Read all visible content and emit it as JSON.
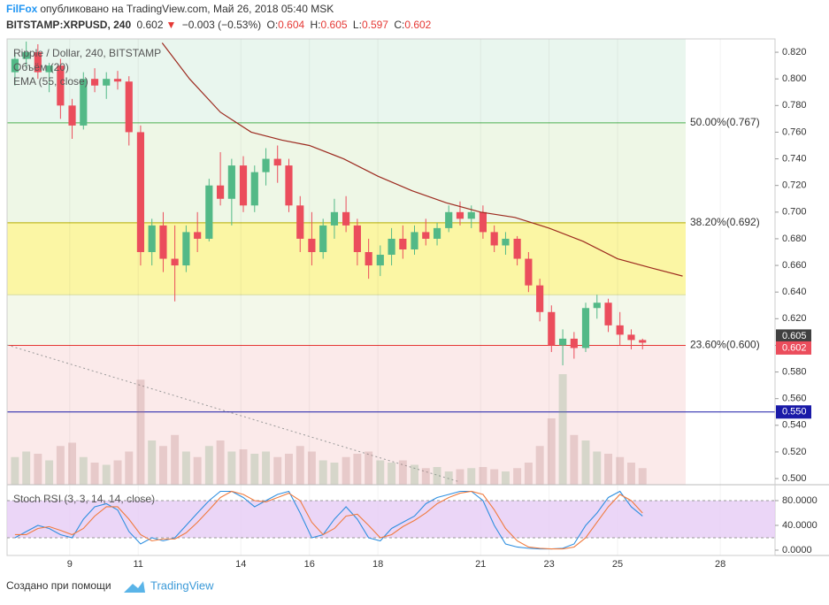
{
  "chart_data": {
    "type": "candlestick",
    "header": {
      "author": "FilFox",
      "published": "опубликовано на TradingView.com, Май 26, 2018 05:40 MSK",
      "symbol": "BITSTAMP:XRPUSD, 240",
      "last": 0.602,
      "change": "−0.003 (−0.53%)",
      "o_label": "O:",
      "o": 0.604,
      "h_label": "H:",
      "h": 0.605,
      "l_label": "L:",
      "l": 0.597,
      "c_label": "C:",
      "c": 0.602
    },
    "legend": [
      "Ripple / Dollar, 240, BITSTAMP",
      "Объём (20)"
    ],
    "up_color": "#53b987",
    "down_color": "#eb4d5c",
    "xlim": [
      7.17,
      29.6
    ],
    "xticks": [
      9,
      11,
      14,
      16,
      18,
      21,
      23,
      25,
      28
    ],
    "ylim": [
      0.4954,
      0.83
    ],
    "yticks": [
      {
        "value": 0.5,
        "label": "0.500"
      },
      {
        "value": 0.52,
        "label": "0.520"
      },
      {
        "value": 0.54,
        "label": "0.540"
      },
      {
        "value": 0.56,
        "label": "0.560"
      },
      {
        "value": 0.58,
        "label": "0.580"
      },
      {
        "value": 0.6,
        "label": "0.600"
      },
      {
        "value": 0.62,
        "label": "0.620"
      },
      {
        "value": 0.64,
        "label": "0.640"
      },
      {
        "value": 0.66,
        "label": "0.660"
      },
      {
        "value": 0.68,
        "label": "0.680"
      },
      {
        "value": 0.7,
        "label": "0.700"
      },
      {
        "value": 0.72,
        "label": "0.720"
      },
      {
        "value": 0.74,
        "label": "0.740"
      },
      {
        "value": 0.76,
        "label": "0.760"
      },
      {
        "value": 0.78,
        "label": "0.780"
      },
      {
        "value": 0.8,
        "label": "0.800"
      },
      {
        "value": 0.82,
        "label": "0.820"
      }
    ],
    "fib_top_fill": "#e9f6ee",
    "fib_levels": [
      {
        "value": 0.767,
        "label": "50.00%(0.767)",
        "color": "#4caf50",
        "fill": "#eef7e6"
      },
      {
        "value": 0.692,
        "label": "38.20%(0.692)",
        "color": "#b5ad00",
        "fill": "#fbf6a4"
      },
      {
        "value": 0.638,
        "label": null,
        "color": "#d8dca0",
        "fill": "#f3f8ea"
      },
      {
        "value": 0.6,
        "label": "23.60%(0.600)",
        "color": "#e53935",
        "fill": "#fbeaea"
      }
    ],
    "price_labels": [
      {
        "value": 0.605,
        "label": "0.605",
        "color": "#404040"
      },
      {
        "value": 0.602,
        "label": "0.602",
        "color": "#eb4d5c"
      },
      {
        "value": 0.55,
        "label": "0.550",
        "color": "#1a1aa8",
        "line": true
      }
    ],
    "x": [
      7.4,
      7.73,
      8.07,
      8.4,
      8.73,
      9.07,
      9.4,
      9.73,
      10.07,
      10.4,
      10.73,
      11.07,
      11.4,
      11.73,
      12.07,
      12.4,
      12.73,
      13.07,
      13.4,
      13.73,
      14.07,
      14.4,
      14.73,
      15.07,
      15.4,
      15.73,
      16.07,
      16.4,
      16.73,
      17.07,
      17.4,
      17.73,
      18.07,
      18.4,
      18.73,
      19.07,
      19.4,
      19.73,
      20.07,
      20.4,
      20.73,
      21.07,
      21.4,
      21.73,
      22.07,
      22.4,
      22.73,
      23.07,
      23.4,
      23.73,
      24.07,
      24.4,
      24.73,
      25.07,
      25.4,
      25.73
    ],
    "open": [
      0.805,
      0.815,
      0.82,
      0.805,
      0.81,
      0.78,
      0.765,
      0.8,
      0.795,
      0.8,
      0.798,
      0.76,
      0.67,
      0.69,
      0.665,
      0.66,
      0.685,
      0.68,
      0.72,
      0.71,
      0.735,
      0.705,
      0.73,
      0.74,
      0.735,
      0.705,
      0.68,
      0.67,
      0.69,
      0.7,
      0.69,
      0.67,
      0.66,
      0.668,
      0.68,
      0.672,
      0.685,
      0.68,
      0.688,
      0.7,
      0.695,
      0.7,
      0.685,
      0.675,
      0.68,
      0.665,
      0.645,
      0.625,
      0.6,
      0.605,
      0.598,
      0.628,
      0.632,
      0.615,
      0.608,
      0.604
    ],
    "high": [
      0.82,
      0.828,
      0.826,
      0.812,
      0.815,
      0.785,
      0.805,
      0.808,
      0.805,
      0.806,
      0.802,
      0.765,
      0.695,
      0.7,
      0.69,
      0.69,
      0.7,
      0.725,
      0.745,
      0.74,
      0.742,
      0.735,
      0.748,
      0.75,
      0.74,
      0.712,
      0.7,
      0.695,
      0.71,
      0.712,
      0.695,
      0.68,
      0.675,
      0.688,
      0.69,
      0.69,
      0.695,
      0.692,
      0.705,
      0.708,
      0.705,
      0.705,
      0.69,
      0.685,
      0.682,
      0.67,
      0.65,
      0.63,
      0.612,
      0.61,
      0.632,
      0.638,
      0.635,
      0.625,
      0.612,
      0.605
    ],
    "low": [
      0.795,
      0.808,
      0.8,
      0.79,
      0.77,
      0.755,
      0.762,
      0.79,
      0.785,
      0.792,
      0.75,
      0.66,
      0.66,
      0.655,
      0.633,
      0.655,
      0.67,
      0.678,
      0.705,
      0.69,
      0.7,
      0.7,
      0.72,
      0.722,
      0.7,
      0.67,
      0.66,
      0.665,
      0.68,
      0.685,
      0.66,
      0.65,
      0.652,
      0.66,
      0.665,
      0.668,
      0.675,
      0.675,
      0.685,
      0.69,
      0.688,
      0.68,
      0.67,
      0.668,
      0.66,
      0.64,
      0.618,
      0.595,
      0.585,
      0.59,
      0.595,
      0.62,
      0.61,
      0.6,
      0.597,
      0.597
    ],
    "close": [
      0.815,
      0.82,
      0.805,
      0.81,
      0.78,
      0.765,
      0.8,
      0.795,
      0.8,
      0.798,
      0.76,
      0.67,
      0.69,
      0.665,
      0.66,
      0.685,
      0.68,
      0.72,
      0.71,
      0.735,
      0.705,
      0.73,
      0.74,
      0.735,
      0.705,
      0.68,
      0.67,
      0.69,
      0.7,
      0.69,
      0.67,
      0.66,
      0.668,
      0.68,
      0.672,
      0.685,
      0.68,
      0.688,
      0.7,
      0.695,
      0.7,
      0.685,
      0.675,
      0.68,
      0.665,
      0.645,
      0.625,
      0.6,
      0.605,
      0.598,
      0.628,
      0.632,
      0.615,
      0.608,
      0.604,
      0.602
    ],
    "volume": [
      25,
      30,
      28,
      22,
      35,
      38,
      25,
      20,
      18,
      22,
      30,
      95,
      40,
      35,
      45,
      30,
      25,
      35,
      40,
      30,
      32,
      28,
      30,
      25,
      28,
      35,
      30,
      22,
      20,
      25,
      28,
      30,
      22,
      20,
      22,
      18,
      15,
      16,
      12,
      14,
      15,
      16,
      14,
      12,
      15,
      20,
      35,
      60,
      100,
      45,
      40,
      30,
      28,
      25,
      20,
      15
    ],
    "ema": {
      "name": "EMA (55, close)",
      "color": "#9c2a1f",
      "x": [
        11.7,
        12.5,
        13.4,
        14.3,
        15.2,
        16.0,
        17.0,
        18.0,
        19.0,
        20.0,
        21.0,
        22.0,
        23.0,
        24.0,
        25.0,
        26.0,
        26.9
      ],
      "values": [
        0.827,
        0.8,
        0.775,
        0.76,
        0.754,
        0.75,
        0.74,
        0.727,
        0.716,
        0.707,
        0.7,
        0.696,
        0.688,
        0.678,
        0.665,
        0.658,
        0.652
      ]
    },
    "stoch": {
      "title": "Stoch RSI (3, 3, 14, 14, close)",
      "ylim": [
        -8.6,
        105.7
      ],
      "yticks": [
        {
          "value": 80,
          "label": "80.0000"
        },
        {
          "value": 40,
          "label": "40.0000"
        },
        {
          "value": 0,
          "label": "0.0000"
        }
      ],
      "band": [
        20,
        80
      ],
      "band_color": "#e6ccf5",
      "k": {
        "color": "#2f8fe0",
        "values": [
          20,
          30,
          40,
          35,
          25,
          20,
          50,
          70,
          75,
          65,
          30,
          10,
          20,
          15,
          20,
          40,
          60,
          80,
          95,
          95,
          85,
          70,
          80,
          90,
          95,
          60,
          20,
          25,
          50,
          70,
          50,
          20,
          15,
          35,
          45,
          55,
          75,
          85,
          90,
          95,
          95,
          80,
          40,
          10,
          5,
          3,
          2,
          2,
          3,
          10,
          40,
          60,
          85,
          95,
          70,
          55
        ]
      },
      "d": {
        "color": "#f07b3f",
        "values": [
          25,
          25,
          35,
          38,
          32,
          25,
          35,
          55,
          70,
          70,
          50,
          25,
          15,
          18,
          18,
          28,
          45,
          65,
          85,
          95,
          90,
          80,
          78,
          85,
          92,
          80,
          45,
          25,
          35,
          55,
          58,
          40,
          20,
          25,
          38,
          48,
          60,
          75,
          85,
          92,
          95,
          90,
          65,
          35,
          15,
          5,
          3,
          2,
          2,
          5,
          20,
          45,
          70,
          90,
          80,
          60
        ]
      }
    },
    "footer": {
      "made_with": "Создано при помощи",
      "brand": "TradingView"
    }
  }
}
